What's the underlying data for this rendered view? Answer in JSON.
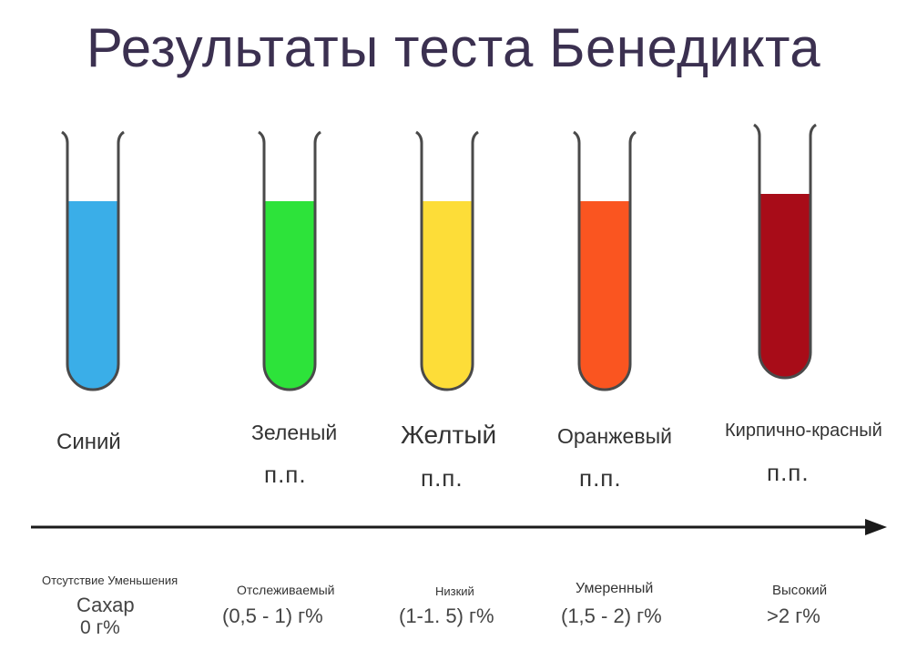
{
  "title": "Результаты теста Бенедикта",
  "colors": {
    "blue": "#3aaee8",
    "green": "#2de33a",
    "yellow": "#fddd38",
    "orange": "#fa5520",
    "brick_red": "#a80c18",
    "tube_outline": "#4a4a4a",
    "title": "#3b3050"
  },
  "tubes": [
    {
      "name": "Синий",
      "pp": "",
      "desc": "Отсутствие Уменьшения",
      "desc2": "Сахар",
      "value": "0 г%"
    },
    {
      "name": "Зеленый",
      "pp": "п.п.",
      "desc": "Отслеживаемый",
      "desc2": "",
      "value": "(0,5 - 1) г%"
    },
    {
      "name": "Желтый",
      "pp": "п.п.",
      "desc": "Низкий",
      "desc2": "",
      "value": "(1-1. 5) г%"
    },
    {
      "name": "Оранжевый",
      "pp": "п.п.",
      "desc": "Умеренный",
      "desc2": "",
      "value": "(1,5 - 2) г%"
    },
    {
      "name": "Кирпично-красный",
      "pp": "п.п.",
      "desc": "Высокий",
      "desc2": "",
      "value": ">2 г%"
    }
  ]
}
